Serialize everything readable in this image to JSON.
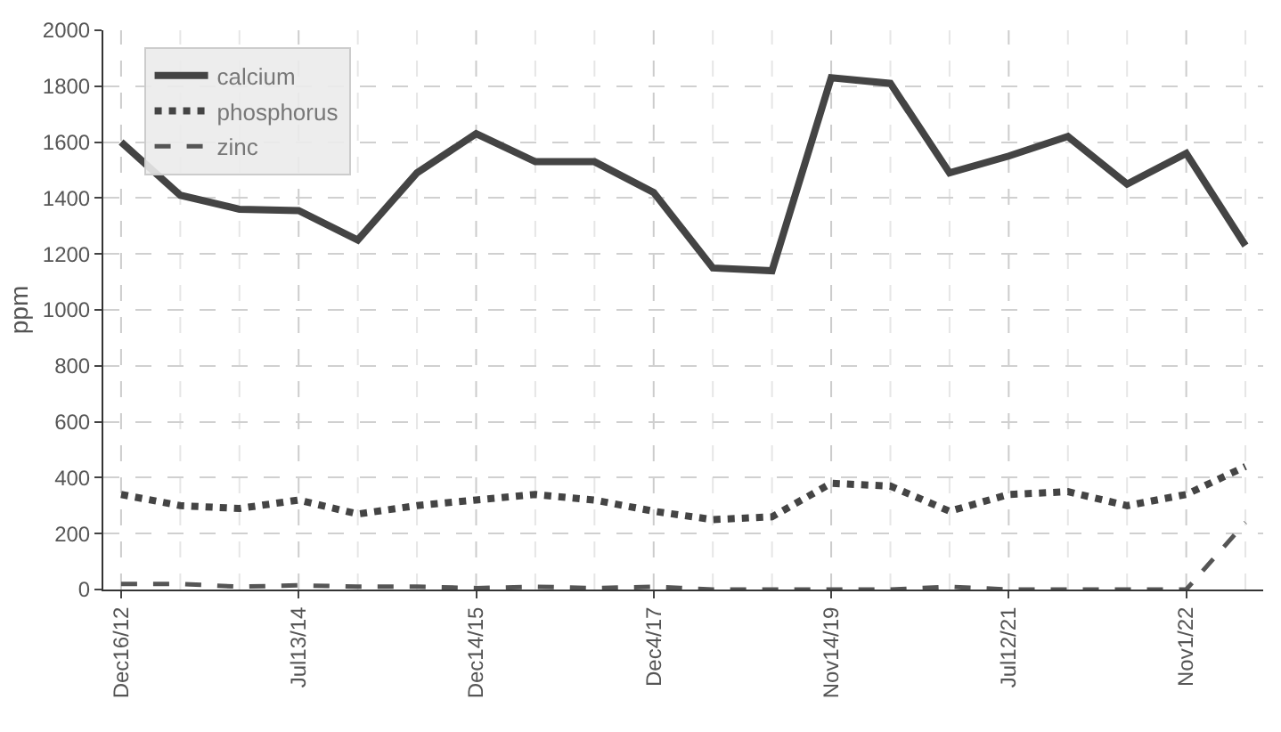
{
  "chart_data": {
    "type": "line",
    "ylabel": "ppm",
    "categories": [
      "Dec16/12",
      null,
      null,
      "Jul13/14",
      null,
      null,
      "Dec14/15",
      null,
      null,
      "Dec4/17",
      null,
      null,
      "Nov14/19",
      null,
      null,
      "Jul12/21",
      null,
      null,
      "Nov1/22",
      null
    ],
    "series": [
      {
        "name": "calcium",
        "color": "#444444",
        "line_style": "solid",
        "values": [
          1600,
          1410,
          1360,
          1355,
          1250,
          1490,
          1630,
          1530,
          1530,
          1420,
          1150,
          1140,
          1830,
          1810,
          1490,
          1550,
          1620,
          1450,
          1560,
          1230
        ]
      },
      {
        "name": "phosphorus",
        "color": "#444444",
        "line_style": "dotted",
        "values": [
          340,
          300,
          290,
          320,
          270,
          300,
          320,
          340,
          320,
          280,
          250,
          260,
          380,
          370,
          280,
          340,
          350,
          300,
          340,
          440
        ]
      },
      {
        "name": "zinc",
        "color": "#555555",
        "line_style": "dashed",
        "values": [
          20,
          20,
          10,
          15,
          10,
          10,
          5,
          10,
          5,
          10,
          0,
          0,
          0,
          0,
          10,
          0,
          0,
          0,
          0,
          240
        ]
      }
    ],
    "ylim": [
      0,
      2000
    ],
    "yticks": [
      0,
      200,
      400,
      600,
      800,
      1000,
      1200,
      1400,
      1600,
      1800,
      2000
    ],
    "grid": true,
    "legend": "top left",
    "marker": "none"
  }
}
